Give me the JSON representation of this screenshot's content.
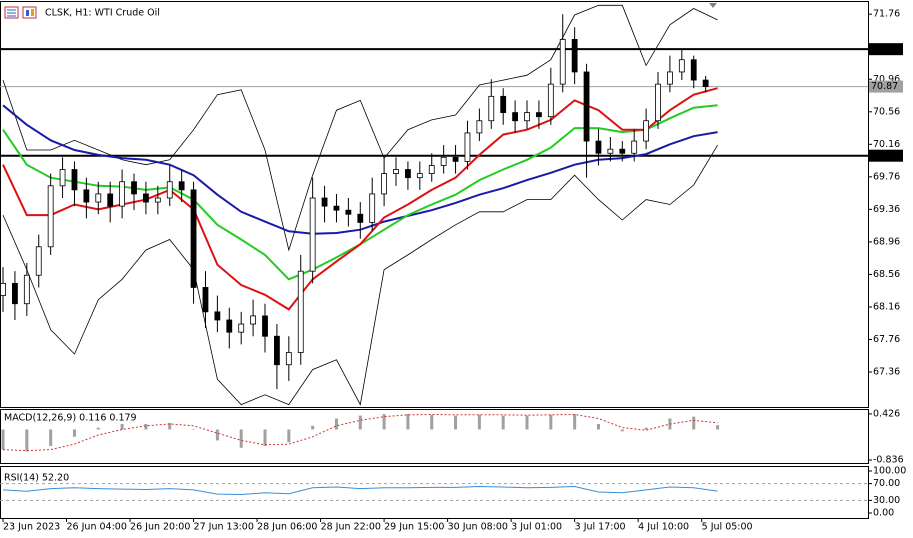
{
  "chart_data": [
    {
      "type": "candlestick",
      "title": "CLSK, H1: WTI Crude Oil",
      "x": [
        0,
        3,
        6,
        9,
        12,
        15,
        18,
        21,
        24,
        27,
        30,
        33,
        36,
        39,
        42,
        45,
        48,
        51,
        54,
        57,
        60,
        63,
        66,
        69,
        72,
        75,
        78,
        81,
        84,
        87,
        90,
        93,
        96,
        99,
        102,
        105,
        108,
        111,
        114,
        117,
        120,
        123,
        126,
        129,
        132,
        135,
        138,
        141,
        144,
        147,
        150,
        153,
        156,
        159,
        162,
        165,
        168,
        171,
        174,
        177
      ],
      "open": [
        68.3,
        68.45,
        68.2,
        68.55,
        68.9,
        69.65,
        69.85,
        69.6,
        69.45,
        69.55,
        69.4,
        69.7,
        69.55,
        69.45,
        69.5,
        69.7,
        69.6,
        68.4,
        68.1,
        68.0,
        67.85,
        67.95,
        68.05,
        67.8,
        67.45,
        67.6,
        68.6,
        69.5,
        69.4,
        69.35,
        69.3,
        69.2,
        69.55,
        69.8,
        69.85,
        69.75,
        69.8,
        69.9,
        70.0,
        69.95,
        70.3,
        70.45,
        70.75,
        70.55,
        70.45,
        70.55,
        70.5,
        70.9,
        71.45,
        71.05,
        70.2,
        70.05,
        70.1,
        70.05,
        70.2,
        70.45,
        70.9,
        71.05,
        71.2,
        70.95
      ],
      "high": [
        68.65,
        68.6,
        68.7,
        69.05,
        69.8,
        70.0,
        69.95,
        69.75,
        69.7,
        69.7,
        69.85,
        69.8,
        69.7,
        69.65,
        69.9,
        69.85,
        69.7,
        68.6,
        68.3,
        68.15,
        68.1,
        68.25,
        68.2,
        67.95,
        67.8,
        68.8,
        69.75,
        69.65,
        69.55,
        69.5,
        69.45,
        69.75,
        70.0,
        70.0,
        69.95,
        69.95,
        70.05,
        70.15,
        70.15,
        70.45,
        70.6,
        70.96,
        70.85,
        70.7,
        70.7,
        70.7,
        71.1,
        71.76,
        71.6,
        71.15,
        70.35,
        70.25,
        70.2,
        70.35,
        70.6,
        71.05,
        71.25,
        71.33,
        71.25,
        71.0
      ],
      "low": [
        68.1,
        68.0,
        68.05,
        68.4,
        68.8,
        69.5,
        69.4,
        69.25,
        69.3,
        69.2,
        69.25,
        69.35,
        69.3,
        69.3,
        69.4,
        69.45,
        68.2,
        67.9,
        67.85,
        67.65,
        67.7,
        67.8,
        67.6,
        67.15,
        67.25,
        67.45,
        68.45,
        69.2,
        69.2,
        69.15,
        69.0,
        69.1,
        69.4,
        69.65,
        69.6,
        69.6,
        69.7,
        69.8,
        69.8,
        69.85,
        70.2,
        70.35,
        70.4,
        70.3,
        70.35,
        70.35,
        70.4,
        70.8,
        70.9,
        69.75,
        69.9,
        69.95,
        69.95,
        69.95,
        70.1,
        70.35,
        70.8,
        70.95,
        70.85,
        70.8
      ],
      "close": [
        68.45,
        68.2,
        68.55,
        68.9,
        69.65,
        69.85,
        69.6,
        69.45,
        69.55,
        69.4,
        69.7,
        69.55,
        69.45,
        69.5,
        69.7,
        69.6,
        68.4,
        68.1,
        68.0,
        67.85,
        67.95,
        68.05,
        67.8,
        67.45,
        67.6,
        68.6,
        69.5,
        69.4,
        69.35,
        69.3,
        69.2,
        69.55,
        69.8,
        69.85,
        69.75,
        69.8,
        69.9,
        70.0,
        69.95,
        70.3,
        70.45,
        70.75,
        70.55,
        70.45,
        70.55,
        70.5,
        70.9,
        71.45,
        71.05,
        70.2,
        70.05,
        70.1,
        70.05,
        70.2,
        70.45,
        70.9,
        71.05,
        71.2,
        70.95,
        70.87
      ],
      "up_color": "#ffffff",
      "down_color": "#000000",
      "line_x": [
        0,
        6,
        12,
        18,
        24,
        30,
        36,
        42,
        48,
        54,
        60,
        66,
        72,
        78,
        84,
        90,
        96,
        102,
        108,
        114,
        120,
        126,
        132,
        138,
        144,
        150,
        156,
        162,
        168,
        174,
        180
      ],
      "overlays": [
        {
          "color": "#000000",
          "values": [
            70.95,
            70.09,
            70.09,
            70.21,
            70.09,
            69.97,
            69.91,
            69.97,
            70.34,
            70.77,
            70.83,
            70.09,
            68.86,
            69.78,
            70.58,
            70.7,
            69.99,
            70.34,
            70.46,
            70.52,
            70.89,
            70.95,
            71.01,
            71.2,
            71.75,
            71.87,
            71.87,
            71.13,
            71.63,
            71.83,
            71.69
          ]
        },
        {
          "color": "#000000",
          "values": [
            69.29,
            68.62,
            67.88,
            67.58,
            68.25,
            68.5,
            68.86,
            68.99,
            68.62,
            67.27,
            66.96,
            67.08,
            66.96,
            67.39,
            67.51,
            66.96,
            68.62,
            68.8,
            68.99,
            69.17,
            69.33,
            69.33,
            69.48,
            69.48,
            69.78,
            69.48,
            69.23,
            69.48,
            69.42,
            69.66,
            70.15
          ]
        },
        {
          "color": "#1a1aa8",
          "values": [
            70.64,
            70.4,
            70.21,
            70.09,
            70.03,
            69.99,
            69.97,
            69.91,
            69.78,
            69.54,
            69.33,
            69.21,
            69.09,
            69.06,
            69.07,
            69.11,
            69.21,
            69.28,
            69.35,
            69.44,
            69.54,
            69.62,
            69.72,
            69.81,
            69.91,
            69.97,
            69.99,
            70.04,
            70.16,
            70.26,
            70.31
          ]
        },
        {
          "color": "#22cc22",
          "values": [
            70.34,
            69.91,
            69.75,
            69.7,
            69.65,
            69.64,
            69.6,
            69.63,
            69.48,
            69.17,
            68.99,
            68.8,
            68.5,
            68.62,
            68.77,
            68.93,
            69.11,
            69.29,
            69.42,
            69.54,
            69.72,
            69.85,
            69.97,
            70.12,
            70.36,
            70.36,
            70.31,
            70.34,
            70.48,
            70.61,
            70.64
          ]
        },
        {
          "color": "#dd1111",
          "values": [
            69.91,
            69.29,
            69.29,
            69.42,
            69.36,
            69.42,
            69.48,
            69.6,
            69.36,
            68.68,
            68.43,
            68.31,
            68.13,
            68.5,
            68.72,
            68.93,
            69.26,
            69.42,
            69.6,
            69.75,
            70.03,
            70.28,
            70.34,
            70.46,
            70.7,
            70.58,
            70.34,
            70.34,
            70.58,
            70.77,
            70.85
          ]
        }
      ],
      "hlines": [
        {
          "value": 71.33,
          "color": "#000000"
        },
        {
          "value": 70.87,
          "color": "#a0a0a0"
        },
        {
          "value": 70.02,
          "color": "#000000"
        }
      ],
      "xlim": [
        -0.76,
        217.9
      ],
      "ylim": [
        66.93,
        71.91
      ],
      "yticks": [
        71.76,
        70.96,
        70.56,
        70.16,
        69.76,
        69.36,
        68.96,
        68.56,
        68.16,
        67.76,
        67.36
      ],
      "xticks": [
        {
          "value": 0,
          "label": "23 Jun 2023"
        },
        {
          "value": 16,
          "label": "26 Jun 04:00"
        },
        {
          "value": 32,
          "label": "26 Jun 20:00"
        },
        {
          "value": 48,
          "label": "27 Jun 13:00"
        },
        {
          "value": 64,
          "label": "28 Jun 06:00"
        },
        {
          "value": 80,
          "label": "28 Jun 22:00"
        },
        {
          "value": 96,
          "label": "29 Jun 15:00"
        },
        {
          "value": 112,
          "label": "30 Jun 08:00"
        },
        {
          "value": 128,
          "label": "3 Jul 01:00"
        },
        {
          "value": 144,
          "label": "3 Jul 17:00"
        },
        {
          "value": 160,
          "label": "4 Jul 10:00"
        },
        {
          "value": 176,
          "label": "5 Jul 05:00"
        }
      ],
      "grid": false
    },
    {
      "type": "macd",
      "title": "MACD(12,26,9) 0.116 0.179",
      "x": [
        0,
        6,
        12,
        18,
        24,
        30,
        36,
        42,
        48,
        54,
        60,
        66,
        72,
        78,
        84,
        90,
        96,
        102,
        108,
        114,
        120,
        126,
        132,
        138,
        144,
        150,
        156,
        162,
        168,
        174,
        180
      ],
      "values": [
        -0.55,
        -0.6,
        -0.45,
        -0.2,
        0.05,
        0.15,
        0.15,
        0.18,
        0.0,
        -0.3,
        -0.5,
        -0.45,
        -0.35,
        0.1,
        0.3,
        0.38,
        0.42,
        0.42,
        0.4,
        0.38,
        0.4,
        0.38,
        0.38,
        0.4,
        0.42,
        0.15,
        -0.05,
        0.05,
        0.3,
        0.35,
        0.116
      ],
      "signal": [
        -0.55,
        -0.58,
        -0.55,
        -0.4,
        -0.15,
        0.0,
        0.1,
        0.15,
        0.1,
        -0.1,
        -0.3,
        -0.42,
        -0.4,
        -0.2,
        0.1,
        0.25,
        0.35,
        0.4,
        0.41,
        0.4,
        0.4,
        0.4,
        0.39,
        0.4,
        0.41,
        0.3,
        0.05,
        -0.02,
        0.15,
        0.25,
        0.179
      ],
      "color": "#a0a0a0",
      "signal_color": "#d03030",
      "xlim": [
        -0.76,
        217.9
      ],
      "ylim": [
        -0.917,
        0.56
      ],
      "yticks": [
        0.426,
        -0.836
      ],
      "grid": false
    },
    {
      "type": "line",
      "title": "RSI(14) 52.20",
      "x": [
        0,
        6,
        12,
        18,
        24,
        30,
        36,
        42,
        48,
        54,
        60,
        66,
        72,
        78,
        84,
        90,
        96,
        102,
        108,
        114,
        120,
        126,
        132,
        138,
        144,
        150,
        156,
        162,
        168,
        174,
        180
      ],
      "values": [
        55,
        52,
        58,
        60,
        58,
        57,
        56,
        58,
        55,
        45,
        44,
        48,
        46,
        60,
        62,
        58,
        60,
        60,
        61,
        61,
        63,
        62,
        60,
        61,
        63,
        50,
        48,
        55,
        62,
        60,
        52.2
      ],
      "color": "#3c8dd8",
      "xlim": [
        -0.76,
        217.9
      ],
      "ylim": [
        0,
        100
      ],
      "yticks": [
        {
          "value": 100,
          "label": "100.00"
        },
        {
          "value": 70,
          "label": "70.00"
        },
        {
          "value": 30,
          "label": "30.00"
        },
        {
          "value": 0,
          "label": "0.00"
        }
      ],
      "grid": true
    }
  ]
}
